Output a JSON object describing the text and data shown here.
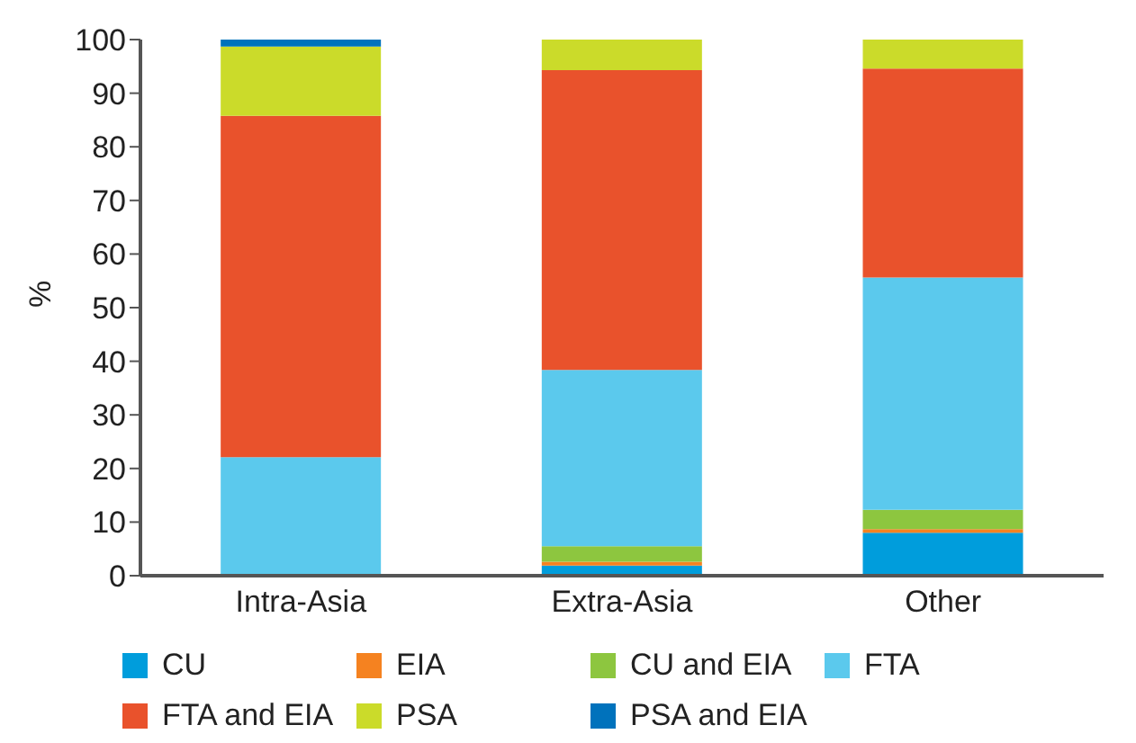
{
  "chart_data": {
    "type": "bar",
    "stacked": true,
    "ylabel": "%",
    "categories": [
      "Intra-Asia",
      "Extra-Asia",
      "Other"
    ],
    "series": [
      {
        "name": "CU",
        "color": "#009ddc",
        "values": [
          0,
          1.9,
          8.0
        ]
      },
      {
        "name": "EIA",
        "color": "#f58220",
        "values": [
          0,
          0.7,
          0.7
        ]
      },
      {
        "name": "CU and EIA",
        "color": "#8dc63f",
        "values": [
          0,
          2.9,
          3.6
        ]
      },
      {
        "name": "FTA",
        "color": "#5bc9ed",
        "values": [
          22.1,
          32.9,
          43.3
        ]
      },
      {
        "name": "FTA and EIA",
        "color": "#e9522c",
        "values": [
          63.7,
          55.9,
          39.0
        ]
      },
      {
        "name": "PSA",
        "color": "#cbdb2a",
        "values": [
          12.9,
          5.7,
          5.4
        ]
      },
      {
        "name": "PSA and EIA",
        "color": "#0072bc",
        "values": [
          1.3,
          0,
          0
        ]
      }
    ],
    "ylim": [
      0,
      100
    ],
    "yticks": [
      0,
      10,
      20,
      30,
      40,
      50,
      60,
      70,
      80,
      90,
      100
    ],
    "grid": false,
    "legend": "bottom"
  }
}
